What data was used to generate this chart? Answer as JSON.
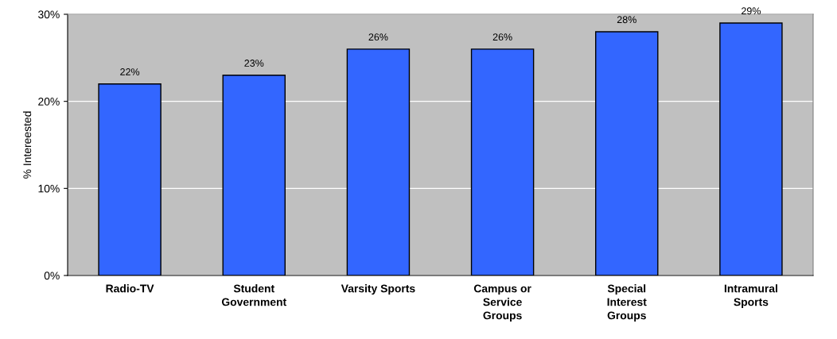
{
  "chart_data": {
    "type": "bar",
    "ylabel": "% Intereested",
    "categories": [
      "Radio-TV",
      "Student\nGovernment",
      "Varsity Sports",
      "Campus or\nService\nGroups",
      "Special\nInterest\nGroups",
      "Intramural\nSports"
    ],
    "values": [
      22,
      23,
      26,
      26,
      28,
      29
    ],
    "value_labels": [
      "22%",
      "23%",
      "26%",
      "26%",
      "28%",
      "29%"
    ],
    "color": "#3366ff",
    "ylim": [
      0,
      30
    ],
    "yticks": [
      {
        "value": 0,
        "label": "0%"
      },
      {
        "value": 10,
        "label": "10%"
      },
      {
        "value": 20,
        "label": "20%"
      },
      {
        "value": 30,
        "label": "30%"
      }
    ],
    "grid": "y",
    "legend": false
  }
}
